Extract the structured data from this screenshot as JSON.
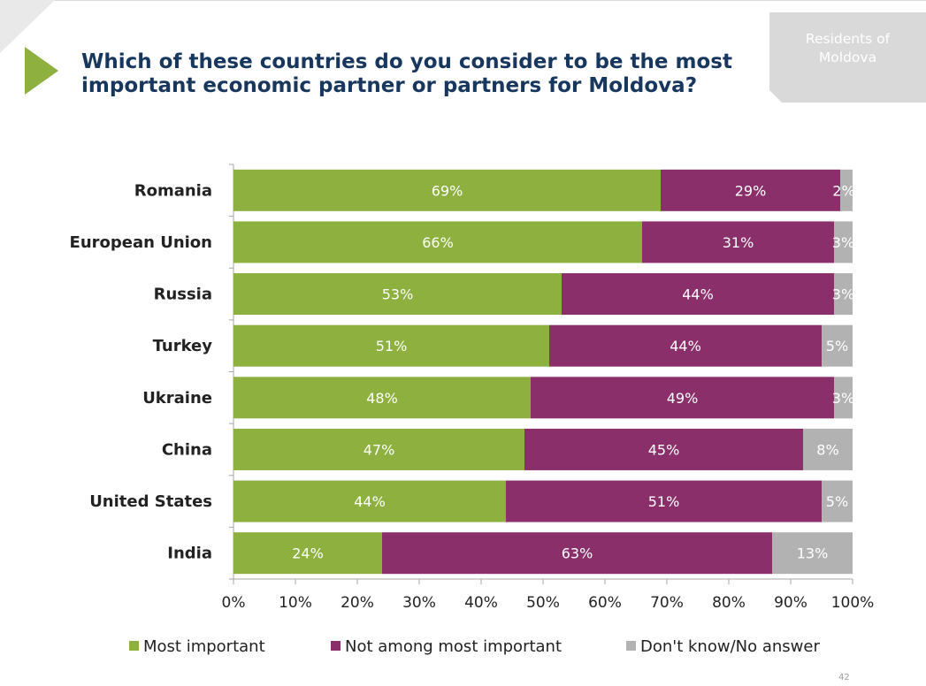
{
  "header": {
    "title_line1": "Which of these countries do you consider to be the most",
    "title_line2": "important economic partner or partners for Moldova?",
    "badge_line1": "Residents of",
    "badge_line2": "Moldova"
  },
  "page_number": "42",
  "colors": {
    "most_important": "#8db03e",
    "not_among": "#8b2f6b",
    "dont_know": "#b2b2b2",
    "title": "#17375e",
    "accent_green": "#8db03e",
    "badge_bg": "#d9d9d9"
  },
  "chart_data": {
    "type": "bar",
    "orientation": "horizontal",
    "stacked": true,
    "categories": [
      "Romania",
      "European Union",
      "Russia",
      "Turkey",
      "Ukraine",
      "China",
      "United States",
      "India"
    ],
    "series": [
      {
        "name": "Most important",
        "values": [
          69,
          66,
          53,
          51,
          48,
          47,
          44,
          24
        ]
      },
      {
        "name": "Not among most important",
        "values": [
          29,
          31,
          44,
          44,
          49,
          45,
          51,
          63
        ]
      },
      {
        "name": "Don't know/No answer",
        "values": [
          2,
          3,
          3,
          5,
          3,
          8,
          5,
          13
        ]
      }
    ],
    "value_labels": [
      [
        "69%",
        "66%",
        "53%",
        "51%",
        "48%",
        "47%",
        "44%",
        "24%"
      ],
      [
        "29%",
        "31%",
        "44%",
        "44%",
        "49%",
        "45%",
        "51%",
        "63%"
      ],
      [
        "2%",
        "3%",
        "3%",
        "5%",
        "3%",
        "8%",
        "5%",
        "13%"
      ]
    ],
    "xlim": [
      0,
      100
    ],
    "x_ticks": [
      0,
      10,
      20,
      30,
      40,
      50,
      60,
      70,
      80,
      90,
      100
    ],
    "x_tick_labels": [
      "0%",
      "10%",
      "20%",
      "30%",
      "40%",
      "50%",
      "60%",
      "70%",
      "80%",
      "90%",
      "100%"
    ],
    "grid": false,
    "legend_position": "bottom"
  }
}
